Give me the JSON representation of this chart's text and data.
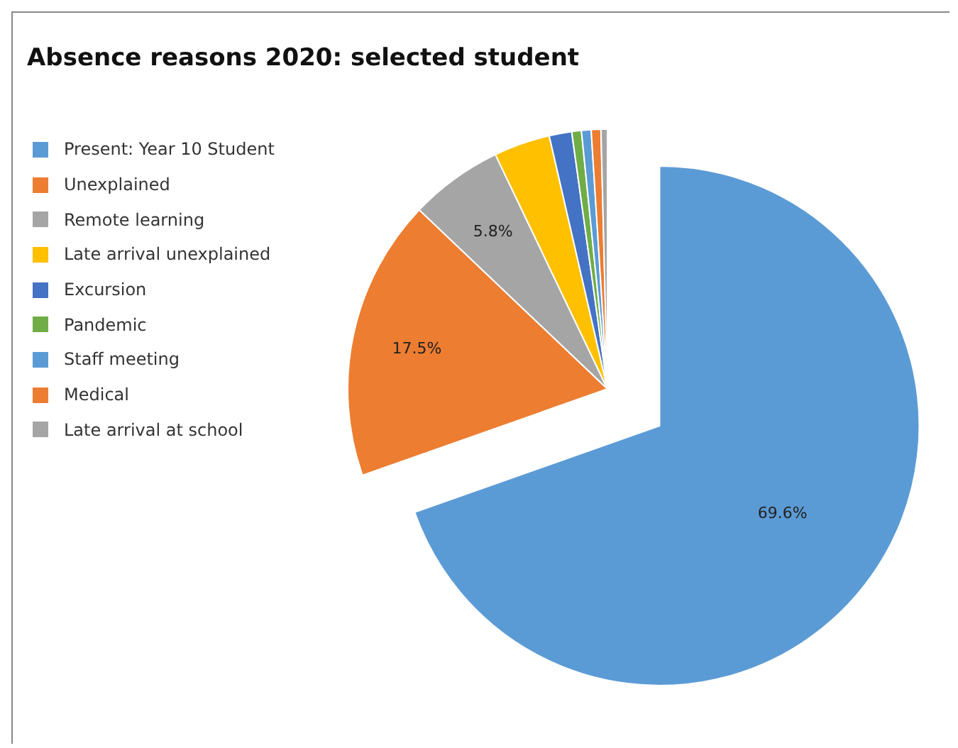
{
  "chart_data": {
    "type": "pie",
    "title": "Absence reasons 2020: selected student",
    "categories": [
      "Present: Year 10 Student",
      "Unexplained",
      "Remote learning",
      "Late arrival unexplained",
      "Excursion",
      "Pandemic",
      "Staff meeting",
      "Medical",
      "Late arrival at school"
    ],
    "values": [
      69.6,
      17.5,
      5.8,
      3.5,
      1.4,
      0.6,
      0.6,
      0.6,
      0.4
    ],
    "value_labels": [
      "69.6%",
      "17.5%",
      "5.8%",
      null,
      null,
      null,
      null,
      null,
      null
    ],
    "colors": [
      "#5b9bd5",
      "#ed7d31",
      "#a5a5a5",
      "#ffc000",
      "#4472c4",
      "#70ad47",
      "#5b9bd5",
      "#ed7d31",
      "#a5a5a5"
    ],
    "legend": "left"
  }
}
